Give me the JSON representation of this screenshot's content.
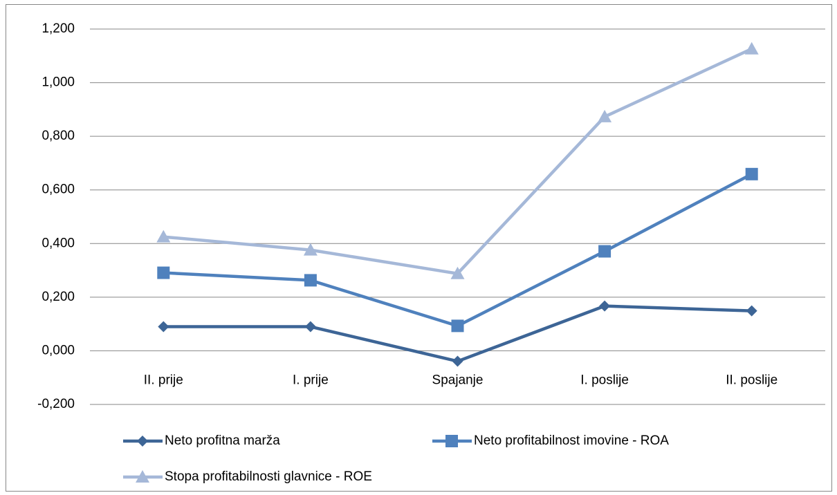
{
  "chart_data": {
    "type": "line",
    "categories": [
      "II. prije",
      "I. prije",
      "Spajanje",
      "I. poslije",
      "II. poslije"
    ],
    "series": [
      {
        "name": "Neto profitna marža",
        "color": "#3d6596",
        "marker": "diamond",
        "values": [
          0.09,
          0.09,
          -0.039,
          0.167,
          0.149
        ]
      },
      {
        "name": "Neto profitabilnost imovine - ROA",
        "color": "#4f81bd",
        "marker": "square",
        "values": [
          0.291,
          0.263,
          0.093,
          0.371,
          0.659
        ]
      },
      {
        "name": "Stopa profitabilnosti glavnice - ROE",
        "color": "#a5b8d8",
        "marker": "triangle",
        "values": [
          0.425,
          0.376,
          0.288,
          0.873,
          1.126
        ]
      }
    ],
    "ylim": [
      -0.2,
      1.2
    ],
    "yticks": [
      {
        "value": -0.2,
        "label": "-0,200"
      },
      {
        "value": 0,
        "label": "0,000"
      },
      {
        "value": 0.2,
        "label": "0,200"
      },
      {
        "value": 0.4,
        "label": "0,400"
      },
      {
        "value": 0.6,
        "label": "0,600"
      },
      {
        "value": 0.8,
        "label": "0,800"
      },
      {
        "value": 1.0,
        "label": "1,000"
      },
      {
        "value": 1.2,
        "label": "1,200"
      }
    ],
    "grid": true,
    "legend": "bottom"
  }
}
